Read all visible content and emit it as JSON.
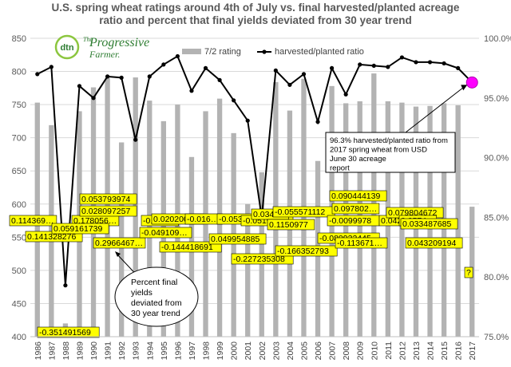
{
  "chart_data": {
    "type": "bar",
    "title": [
      "U.S. spring wheat ratings around 4th of July vs. final harvested/planted acreage",
      "ratio and percent that final yields deviated from 30 year trend"
    ],
    "categories": [
      "1986",
      "1987",
      "1988",
      "1989",
      "1990",
      "1991",
      "1992",
      "1993",
      "1994",
      "1995",
      "1996",
      "1997",
      "1998",
      "1999",
      "2000",
      "2001",
      "2002",
      "2003",
      "2004",
      "2005",
      "2006",
      "2007",
      "2008",
      "2009",
      "2010",
      "2011",
      "2012",
      "2013",
      "2014",
      "2015",
      "2016",
      "2017"
    ],
    "left_axis": {
      "min": 400,
      "max": 850,
      "step": 50,
      "ticks": [
        "400",
        "450",
        "500",
        "550",
        "600",
        "650",
        "700",
        "750",
        "800",
        "850"
      ]
    },
    "right_axis": {
      "min": 75,
      "max": 100,
      "step": 5,
      "ticks": [
        "75.0%",
        "80.0%",
        "85.0%",
        "90.0%",
        "95.0%",
        "100.0%"
      ]
    },
    "legend_position": "top-right",
    "series": [
      {
        "name": "7/2 rating",
        "type": "bar",
        "axis": "left",
        "color": "#b3b3b3",
        "values": [
          753,
          719,
          420,
          740,
          776,
          790,
          693,
          791,
          756,
          725,
          750,
          671,
          740,
          759,
          707,
          600,
          648,
          784,
          741,
          789,
          665,
          778,
          752,
          755,
          797,
          755,
          753,
          747,
          748,
          752,
          749,
          596
        ]
      },
      {
        "name": "harvested/planted ratio",
        "type": "line",
        "axis": "right",
        "color": "#000000",
        "values": [
          97.0,
          97.6,
          79.3,
          96.0,
          95.0,
          96.8,
          96.7,
          91.5,
          96.8,
          97.8,
          98.5,
          95.6,
          97.5,
          96.5,
          94.8,
          93.1,
          85.0,
          97.3,
          96.1,
          97.0,
          93.0,
          97.5,
          95.3,
          97.8,
          97.7,
          97.6,
          98.4,
          98.0,
          98.0,
          97.9,
          97.5,
          96.3
        ]
      }
    ],
    "deviation_labels": [
      {
        "year": "1986",
        "text": "0.114369…"
      },
      {
        "year": "1986",
        "text": "0.141328276"
      },
      {
        "year": "1988",
        "text": "0.178056…"
      },
      {
        "year": "1988",
        "text": "0.059161739"
      },
      {
        "year": "1988",
        "text": "-0.351491569"
      },
      {
        "year": "1990",
        "text": "0.053793974"
      },
      {
        "year": "1990",
        "text": "0.028097257"
      },
      {
        "year": "1991",
        "text": "0.2966467…"
      },
      {
        "year": "1992",
        "text": "-0.045…"
      },
      {
        "year": "1992",
        "text": "-0.049109…"
      },
      {
        "year": "1994",
        "text": "0.0202005…"
      },
      {
        "year": "1994",
        "text": "-0.144418691"
      },
      {
        "year": "1996",
        "text": "-0.016…"
      },
      {
        "year": "1998",
        "text": "-0.053…"
      },
      {
        "year": "1998",
        "text": "0.049954885"
      },
      {
        "year": "2000",
        "text": "-0.051963…"
      },
      {
        "year": "2001",
        "text": "-0.227235308"
      },
      {
        "year": "2002",
        "text": "0.0340…"
      },
      {
        "year": "2003",
        "text": "-0.055571112"
      },
      {
        "year": "2003",
        "text": "0.1150977"
      },
      {
        "year": "2004",
        "text": "-0.166352793"
      },
      {
        "year": "2005",
        "text": "-0.080932445"
      },
      {
        "year": "2008",
        "text": "0.090444139"
      },
      {
        "year": "2008",
        "text": "-0.0099978"
      },
      {
        "year": "2009",
        "text": "0.097802…"
      },
      {
        "year": "2010",
        "text": "-0.113671…"
      },
      {
        "year": "2011",
        "text": "0.042319…"
      },
      {
        "year": "2012",
        "text": "0.079804672"
      },
      {
        "year": "2013",
        "text": "0.0574…"
      },
      {
        "year": "2013",
        "text": "0.033487685"
      },
      {
        "year": "2014",
        "text": "0.043209194"
      },
      {
        "year": "2017",
        "text": "?"
      }
    ],
    "annotations": {
      "yield_callout": "Percent final yields deviated from 30 year trend",
      "ratio_callout": "96.3% harvested/planted ratio from 2017 spring wheat from USDA June 30 acreage report"
    },
    "highlight": {
      "year": "2017",
      "value": 96.3,
      "color": "#ff00ff"
    },
    "logo": {
      "dtn": "dtn",
      "line1": "The",
      "line2": "Progressive",
      "line3": "Farmer."
    }
  }
}
